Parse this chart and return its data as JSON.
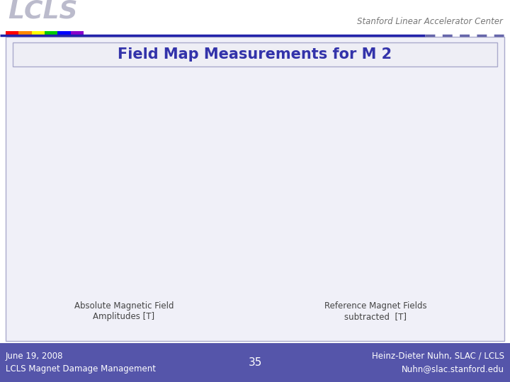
{
  "title": "Field Map Measurements for M 2",
  "subtitle_left": "Absolute Magnetic Field\nAmplitudes [T]",
  "subtitle_right": "Reference Magnet Fields\nsubtracted  [T]",
  "footer_left_line1": "June 19, 2008",
  "footer_left_line2": "LCLS Magnet Damage Management",
  "footer_center": "35",
  "footer_right_line1": "Heinz-Dieter Nuhn, SLAC / LCLS",
  "footer_right_line2": "Nuhn@slac.stanford.edu",
  "header_text": "Stanford Linear Accelerator Center",
  "bg_color": "#ffffff",
  "footer_bg_color": "#5555aa",
  "title_box_bg": "#eeeef5",
  "title_color": "#3333aa",
  "content_bg": "#f0f0f8",
  "footer_text_color": "#ffffff",
  "header_line_color_solid": "#2222aa",
  "header_line_color_dashed": "#6666aa",
  "subtitle_color": "#444444",
  "header_text_color": "#777777",
  "lcls_text_color": "#bbbbcc",
  "rainbow_colors": [
    "#ff0000",
    "#ff8800",
    "#ffff00",
    "#00cc00",
    "#0000ff",
    "#8800cc"
  ],
  "fig_width": 7.2,
  "fig_height": 5.4,
  "fig_dpi": 100
}
